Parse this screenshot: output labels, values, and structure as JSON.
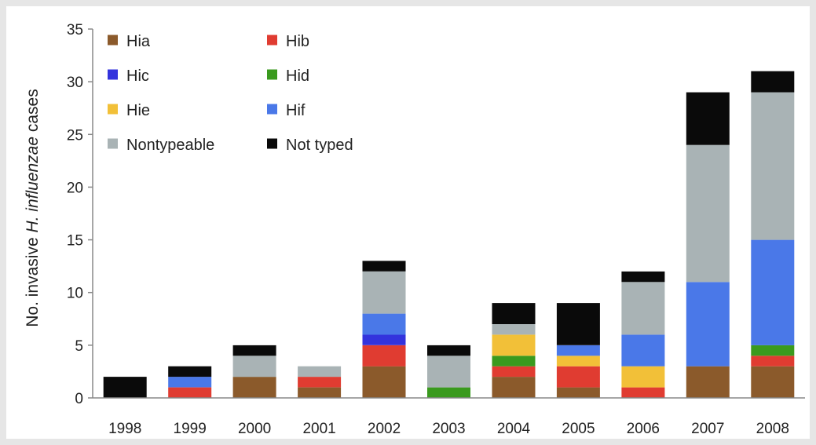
{
  "chart_data": {
    "type": "bar",
    "stacked": true,
    "title": "",
    "xlabel": "",
    "ylabel_parts": [
      "No. invasive ",
      "H. influenzae",
      " cases"
    ],
    "ylim": [
      0,
      35
    ],
    "yticks": [
      0,
      5,
      10,
      15,
      20,
      25,
      30,
      35
    ],
    "grid": false,
    "legend_position": "top-left",
    "categories": [
      "1998",
      "1999",
      "2000",
      "2001",
      "2002",
      "2003",
      "2004",
      "2005",
      "2006",
      "2007",
      "2008"
    ],
    "series": [
      {
        "name": "Hia",
        "color": "#8b5a2b",
        "values": [
          0,
          0,
          2,
          1,
          3,
          0,
          2,
          1,
          0,
          3,
          3
        ]
      },
      {
        "name": "Hib",
        "color": "#e03c31",
        "values": [
          0,
          1,
          0,
          1,
          2,
          0,
          1,
          2,
          1,
          0,
          1
        ]
      },
      {
        "name": "Hic",
        "color": "#3333dd",
        "values": [
          0,
          0,
          0,
          0,
          1,
          0,
          0,
          0,
          0,
          0,
          0
        ]
      },
      {
        "name": "Hid",
        "color": "#3a9a1e",
        "values": [
          0,
          0,
          0,
          0,
          0,
          1,
          1,
          0,
          0,
          0,
          1
        ]
      },
      {
        "name": "Hie",
        "color": "#f2c038",
        "values": [
          0,
          0,
          0,
          0,
          0,
          0,
          2,
          1,
          2,
          0,
          0
        ]
      },
      {
        "name": "Hif",
        "color": "#4a78e8",
        "values": [
          0,
          1,
          0,
          0,
          2,
          0,
          0,
          1,
          3,
          8,
          10
        ]
      },
      {
        "name": "Nontypeable",
        "color": "#a9b3b5",
        "values": [
          0,
          0,
          2,
          1,
          4,
          3,
          1,
          0,
          5,
          13,
          14
        ]
      },
      {
        "name": "Not typed",
        "color": "#0a0a0a",
        "values": [
          2,
          1,
          1,
          0,
          1,
          1,
          2,
          4,
          1,
          5,
          2
        ]
      }
    ]
  }
}
